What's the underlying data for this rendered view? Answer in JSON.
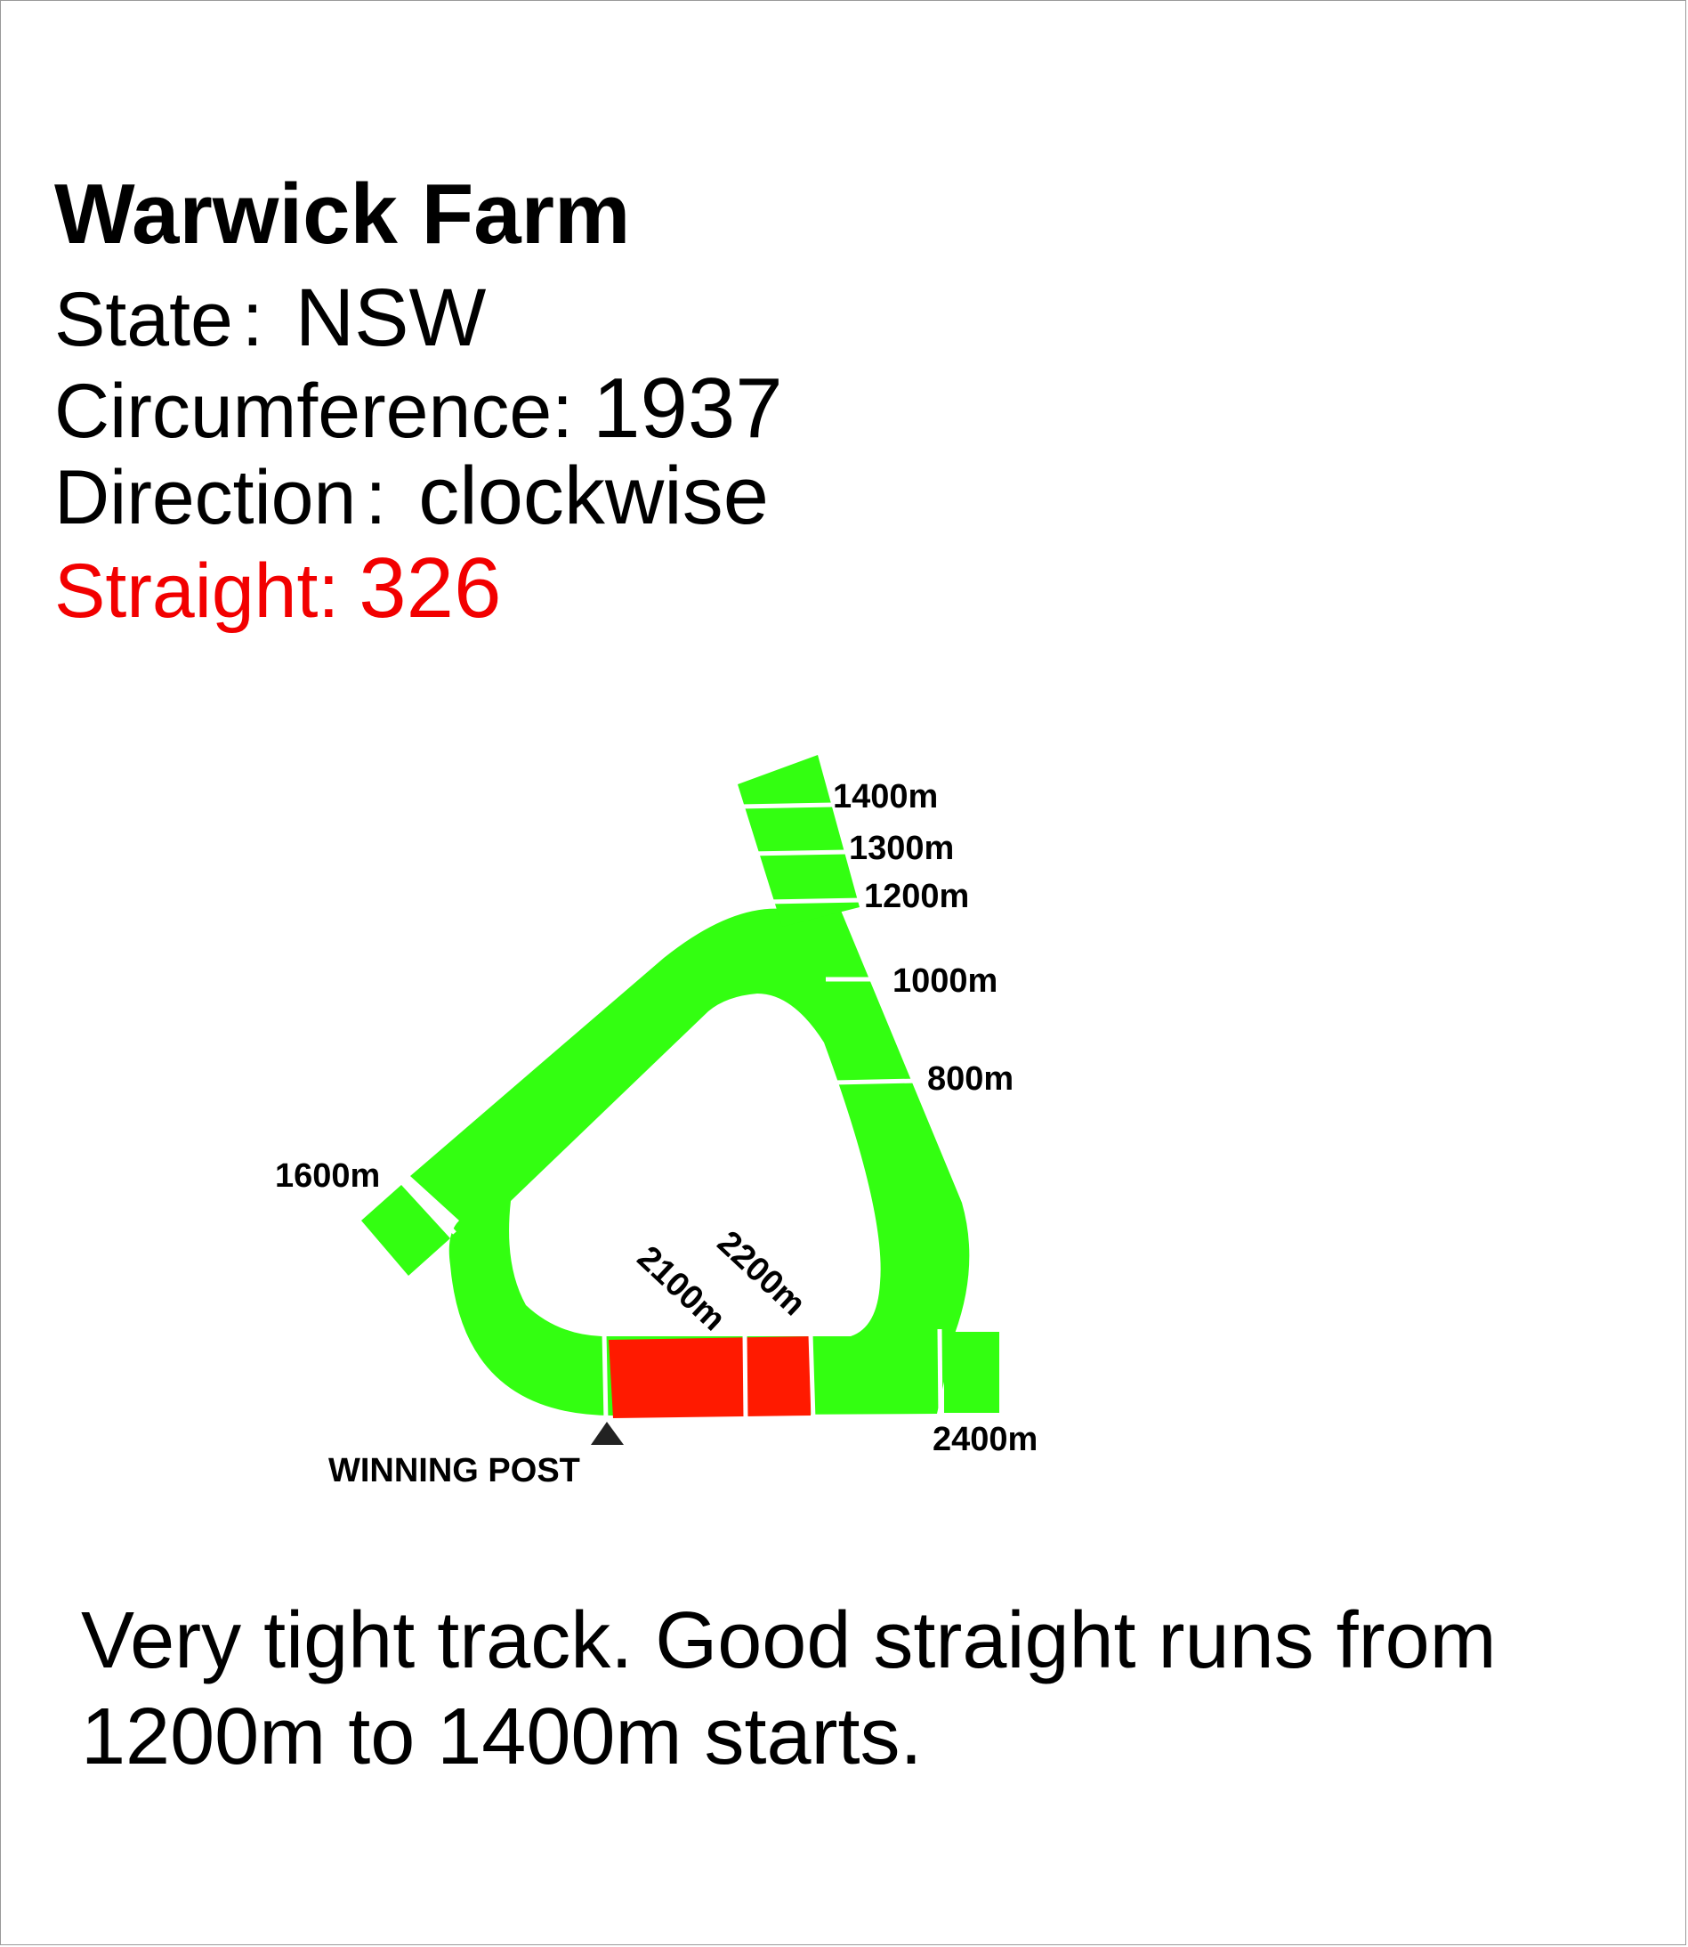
{
  "track": {
    "name": "Warwick Farm",
    "state_label": "State",
    "state_value": "NSW",
    "circumference_label": "Circumference:",
    "circumference_value": "1937",
    "direction_label": "Direction",
    "direction_value": "clockwise",
    "straight_label": "Straight:",
    "straight_value": "326"
  },
  "markers": {
    "m1400": "1400m",
    "m1300": "1300m",
    "m1200": "1200m",
    "m1000": "1000m",
    "m800": "800m",
    "m1600": "1600m",
    "m2100": "2100m",
    "m2200": "2200m",
    "m2400": "2400m",
    "winning_post": "WINNING POST"
  },
  "note": "Very tight track. Good straight runs from 1200m to 1400m starts.",
  "colors": {
    "track": "#33ff11",
    "straight": "#ff1a00",
    "text": "#000000",
    "straight_text": "#f20000"
  }
}
